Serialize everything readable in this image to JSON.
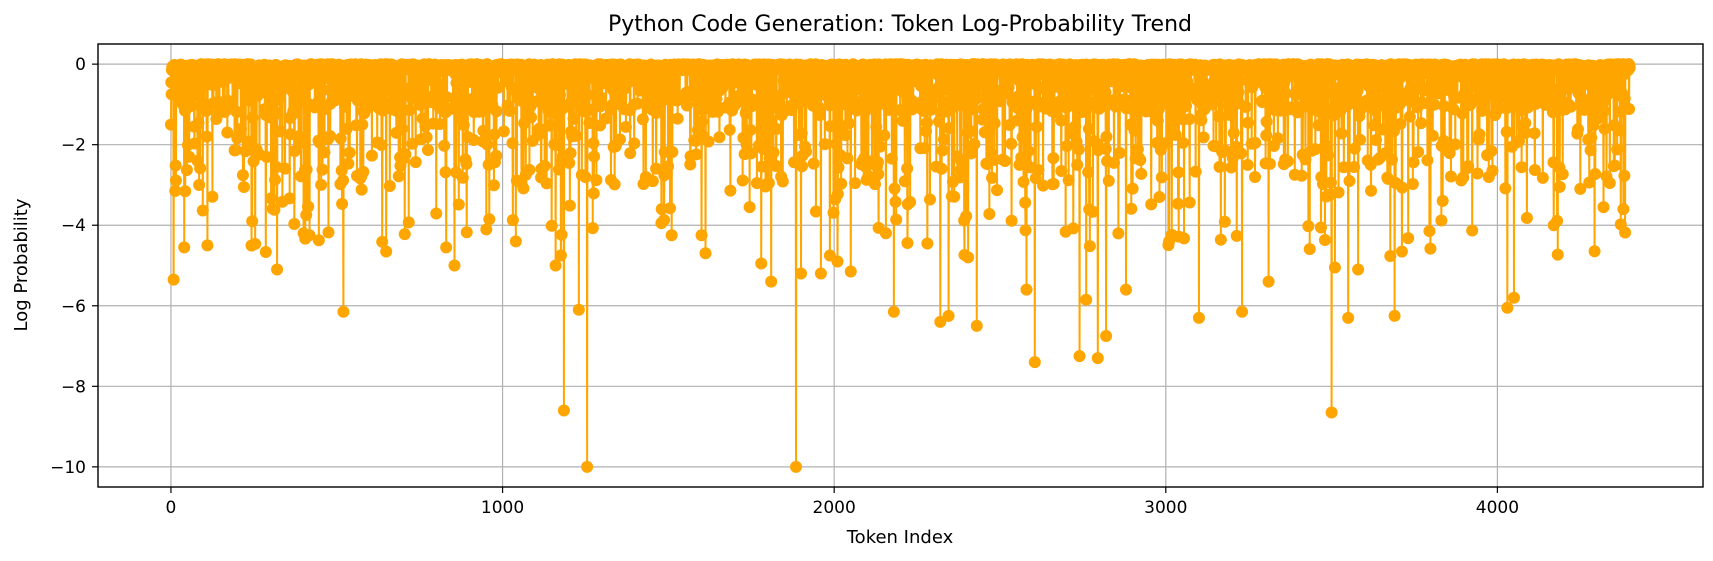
{
  "chart_data": {
    "type": "line",
    "title": "Python Code Generation: Token Log-Probability Trend",
    "xlabel": "Token Index",
    "ylabel": "Log Probability",
    "xlim": [
      -220,
      4620
    ],
    "ylim": [
      -10.5,
      0.5
    ],
    "xticks": [
      0,
      1000,
      2000,
      3000,
      4000
    ],
    "xtick_labels": [
      "0",
      "1000",
      "2000",
      "3000",
      "4000"
    ],
    "yticks": [
      0,
      -2,
      -4,
      -6,
      -8,
      -10
    ],
    "ytick_labels": [
      "0",
      "−2",
      "−4",
      "−6",
      "−8",
      "−10"
    ],
    "grid": true,
    "color": "#FFA500",
    "marker": "circle",
    "n_tokens": 4400,
    "series": [
      {
        "values_note": "sampled visible low-probability tokens; all other tokens are near 0",
        "x": [
          8,
          40,
          85,
          110,
          220,
          245,
          320,
          400,
          520,
          700,
          830,
          855,
          960,
          1040,
          1160,
          1185,
          1230,
          1255,
          1480,
          1510,
          1600,
          1780,
          1810,
          1885,
          1900,
          1960,
          2010,
          2050,
          2180,
          2320,
          2345,
          2430,
          2580,
          2605,
          2740,
          2760,
          2795,
          2820,
          2880,
          3100,
          3230,
          3310,
          3500,
          3510,
          3550,
          3580,
          3690,
          4030,
          4050,
          4170,
          4320,
          4380
        ],
        "y": [
          -5.35,
          -4.55,
          -3.0,
          -4.5,
          -3.05,
          -3.9,
          -5.1,
          -4.2,
          -6.15,
          -2.35,
          -4.55,
          -5.0,
          -3.85,
          -4.4,
          -5.0,
          -8.6,
          -6.1,
          -10.0,
          -3.6,
          -4.25,
          -4.25,
          -4.95,
          -5.4,
          -10.0,
          -5.2,
          -5.2,
          -4.9,
          -5.15,
          -6.15,
          -6.4,
          -6.25,
          -6.5,
          -5.6,
          -7.4,
          -7.25,
          -5.85,
          -7.3,
          -6.75,
          -5.6,
          -6.3,
          -6.15,
          -5.4,
          -8.65,
          -5.05,
          -6.3,
          -5.1,
          -6.25,
          -6.05,
          -5.8,
          -4.0,
          -3.55,
          -3.6
        ]
      }
    ]
  }
}
